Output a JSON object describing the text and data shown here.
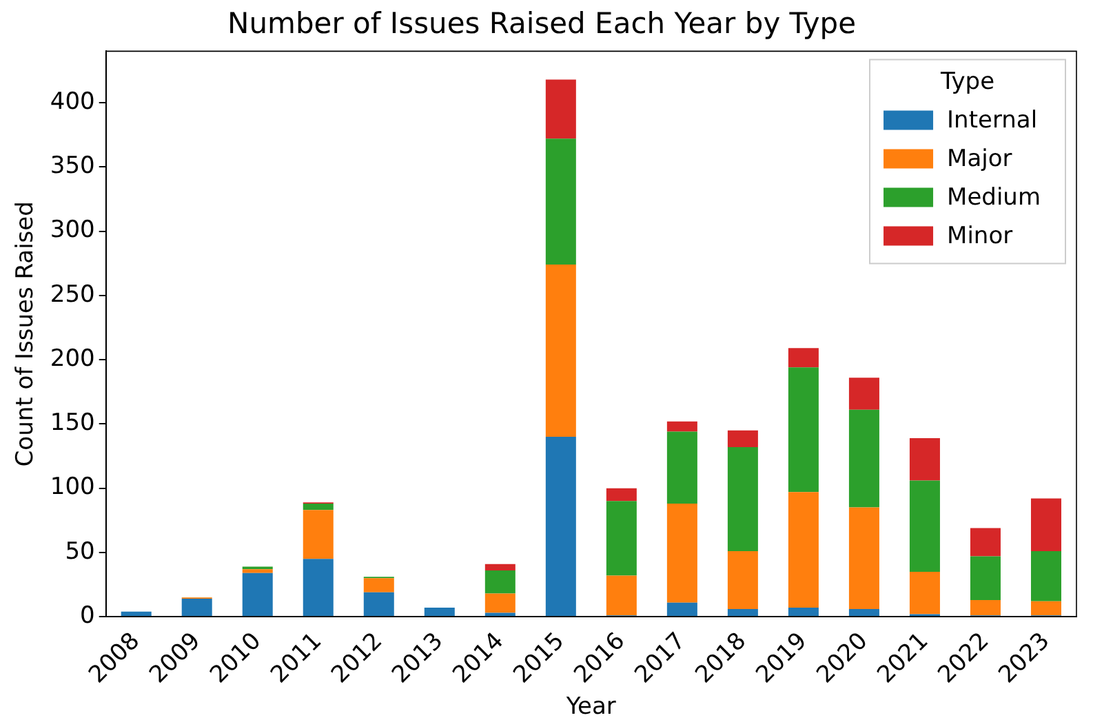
{
  "chart_data": {
    "type": "bar",
    "title": "Number of Issues Raised Each Year by Type",
    "xlabel": "Year",
    "ylabel": "Count of Issues Raised",
    "legend_title": "Type",
    "legend": "top right",
    "stacked": true,
    "grid": false,
    "categories": [
      "2008",
      "2009",
      "2010",
      "2011",
      "2012",
      "2013",
      "2014",
      "2015",
      "2016",
      "2017",
      "2018",
      "2019",
      "2020",
      "2021",
      "2022",
      "2023"
    ],
    "ylim": [
      0,
      440
    ],
    "yticks": [
      0,
      50,
      100,
      150,
      200,
      250,
      300,
      350,
      400
    ],
    "series": [
      {
        "name": "Internal",
        "color": "#1f77b4",
        "values": [
          4,
          14,
          34,
          45,
          19,
          7,
          3,
          140,
          1,
          11,
          6,
          7,
          6,
          2,
          1,
          1
        ]
      },
      {
        "name": "Major",
        "color": "#ff7f0e",
        "values": [
          0,
          1,
          3,
          38,
          11,
          0,
          15,
          134,
          31,
          77,
          45,
          90,
          79,
          33,
          12,
          11
        ]
      },
      {
        "name": "Medium",
        "color": "#2ca02c",
        "values": [
          0,
          0,
          2,
          5,
          1,
          0,
          18,
          98,
          58,
          56,
          81,
          97,
          76,
          71,
          34,
          39
        ]
      },
      {
        "name": "Minor",
        "color": "#d62728",
        "values": [
          0,
          0,
          0,
          1,
          0,
          0,
          5,
          46,
          10,
          8,
          13,
          15,
          25,
          33,
          22,
          41
        ]
      }
    ]
  }
}
